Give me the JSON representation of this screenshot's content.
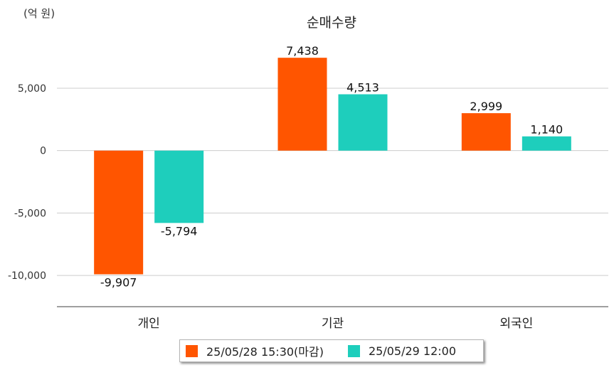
{
  "unit_label": "(억 원)",
  "chart_data": {
    "type": "bar",
    "title": "순매수량",
    "xlabel": "",
    "ylabel": "",
    "categories": [
      "개인",
      "기관",
      "외국인"
    ],
    "series": [
      {
        "name": "25/05/28 15:30(마감)",
        "color": "#ff5500",
        "values": [
          -9907,
          7438,
          2999
        ],
        "labels": [
          "-9,907",
          "7,438",
          "2,999"
        ]
      },
      {
        "name": "25/05/29 12:00",
        "color": "#1ecebc",
        "values": [
          -5794,
          4513,
          1140
        ],
        "labels": [
          "-5,794",
          "4,513",
          "1,140"
        ]
      }
    ],
    "ylim": [
      -12500,
      9500
    ],
    "yticks": [
      5000,
      0,
      -5000,
      -10000
    ],
    "ytick_labels": [
      "5,000",
      "0",
      "-5,000",
      "-10,000"
    ],
    "grid": true,
    "legend_position": "bottom"
  }
}
